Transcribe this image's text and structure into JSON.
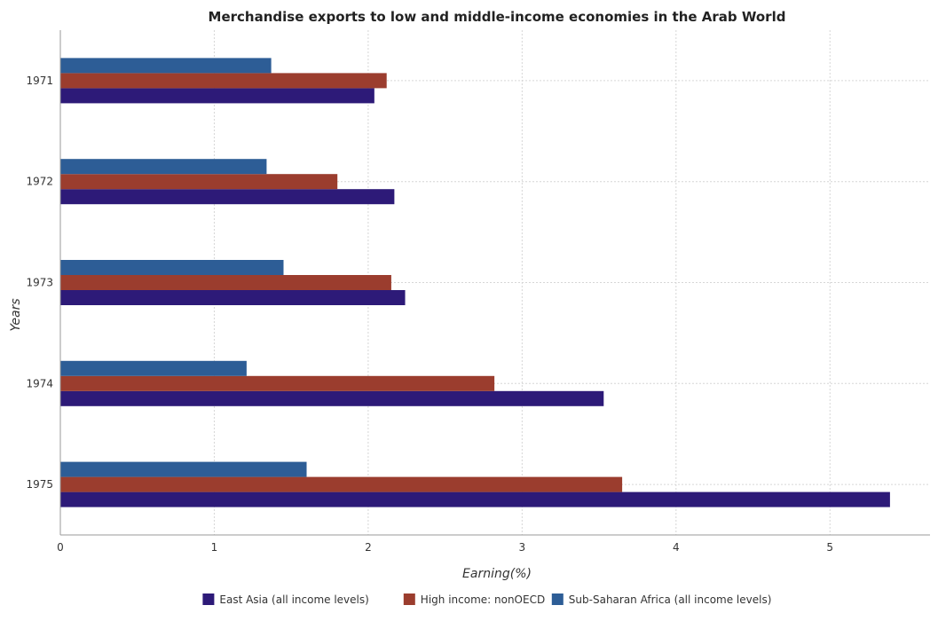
{
  "chart_data": {
    "type": "bar",
    "orientation": "horizontal",
    "title": "Merchandise exports to low and middle-income economies in the Arab World",
    "xlabel": "Earning(%)",
    "ylabel": "Years",
    "categories": [
      "1971",
      "1972",
      "1973",
      "1974",
      "1975"
    ],
    "xlim": [
      0,
      5.65
    ],
    "xticks": [
      "0",
      "1",
      "2",
      "3",
      "4",
      "5"
    ],
    "grid": true,
    "legend_position": "bottom",
    "series": [
      {
        "name": "East Asia (all income levels)",
        "color": "#2d1a78",
        "values": [
          2.04,
          2.17,
          2.24,
          3.53,
          5.39
        ]
      },
      {
        "name": "High income: nonOECD",
        "color": "#9b3d2e",
        "values": [
          2.12,
          1.8,
          2.15,
          2.82,
          3.65
        ]
      },
      {
        "name": "Sub-Saharan Africa (all income levels)",
        "color": "#2d5d96",
        "values": [
          1.37,
          1.34,
          1.45,
          1.21,
          1.6
        ]
      }
    ]
  }
}
